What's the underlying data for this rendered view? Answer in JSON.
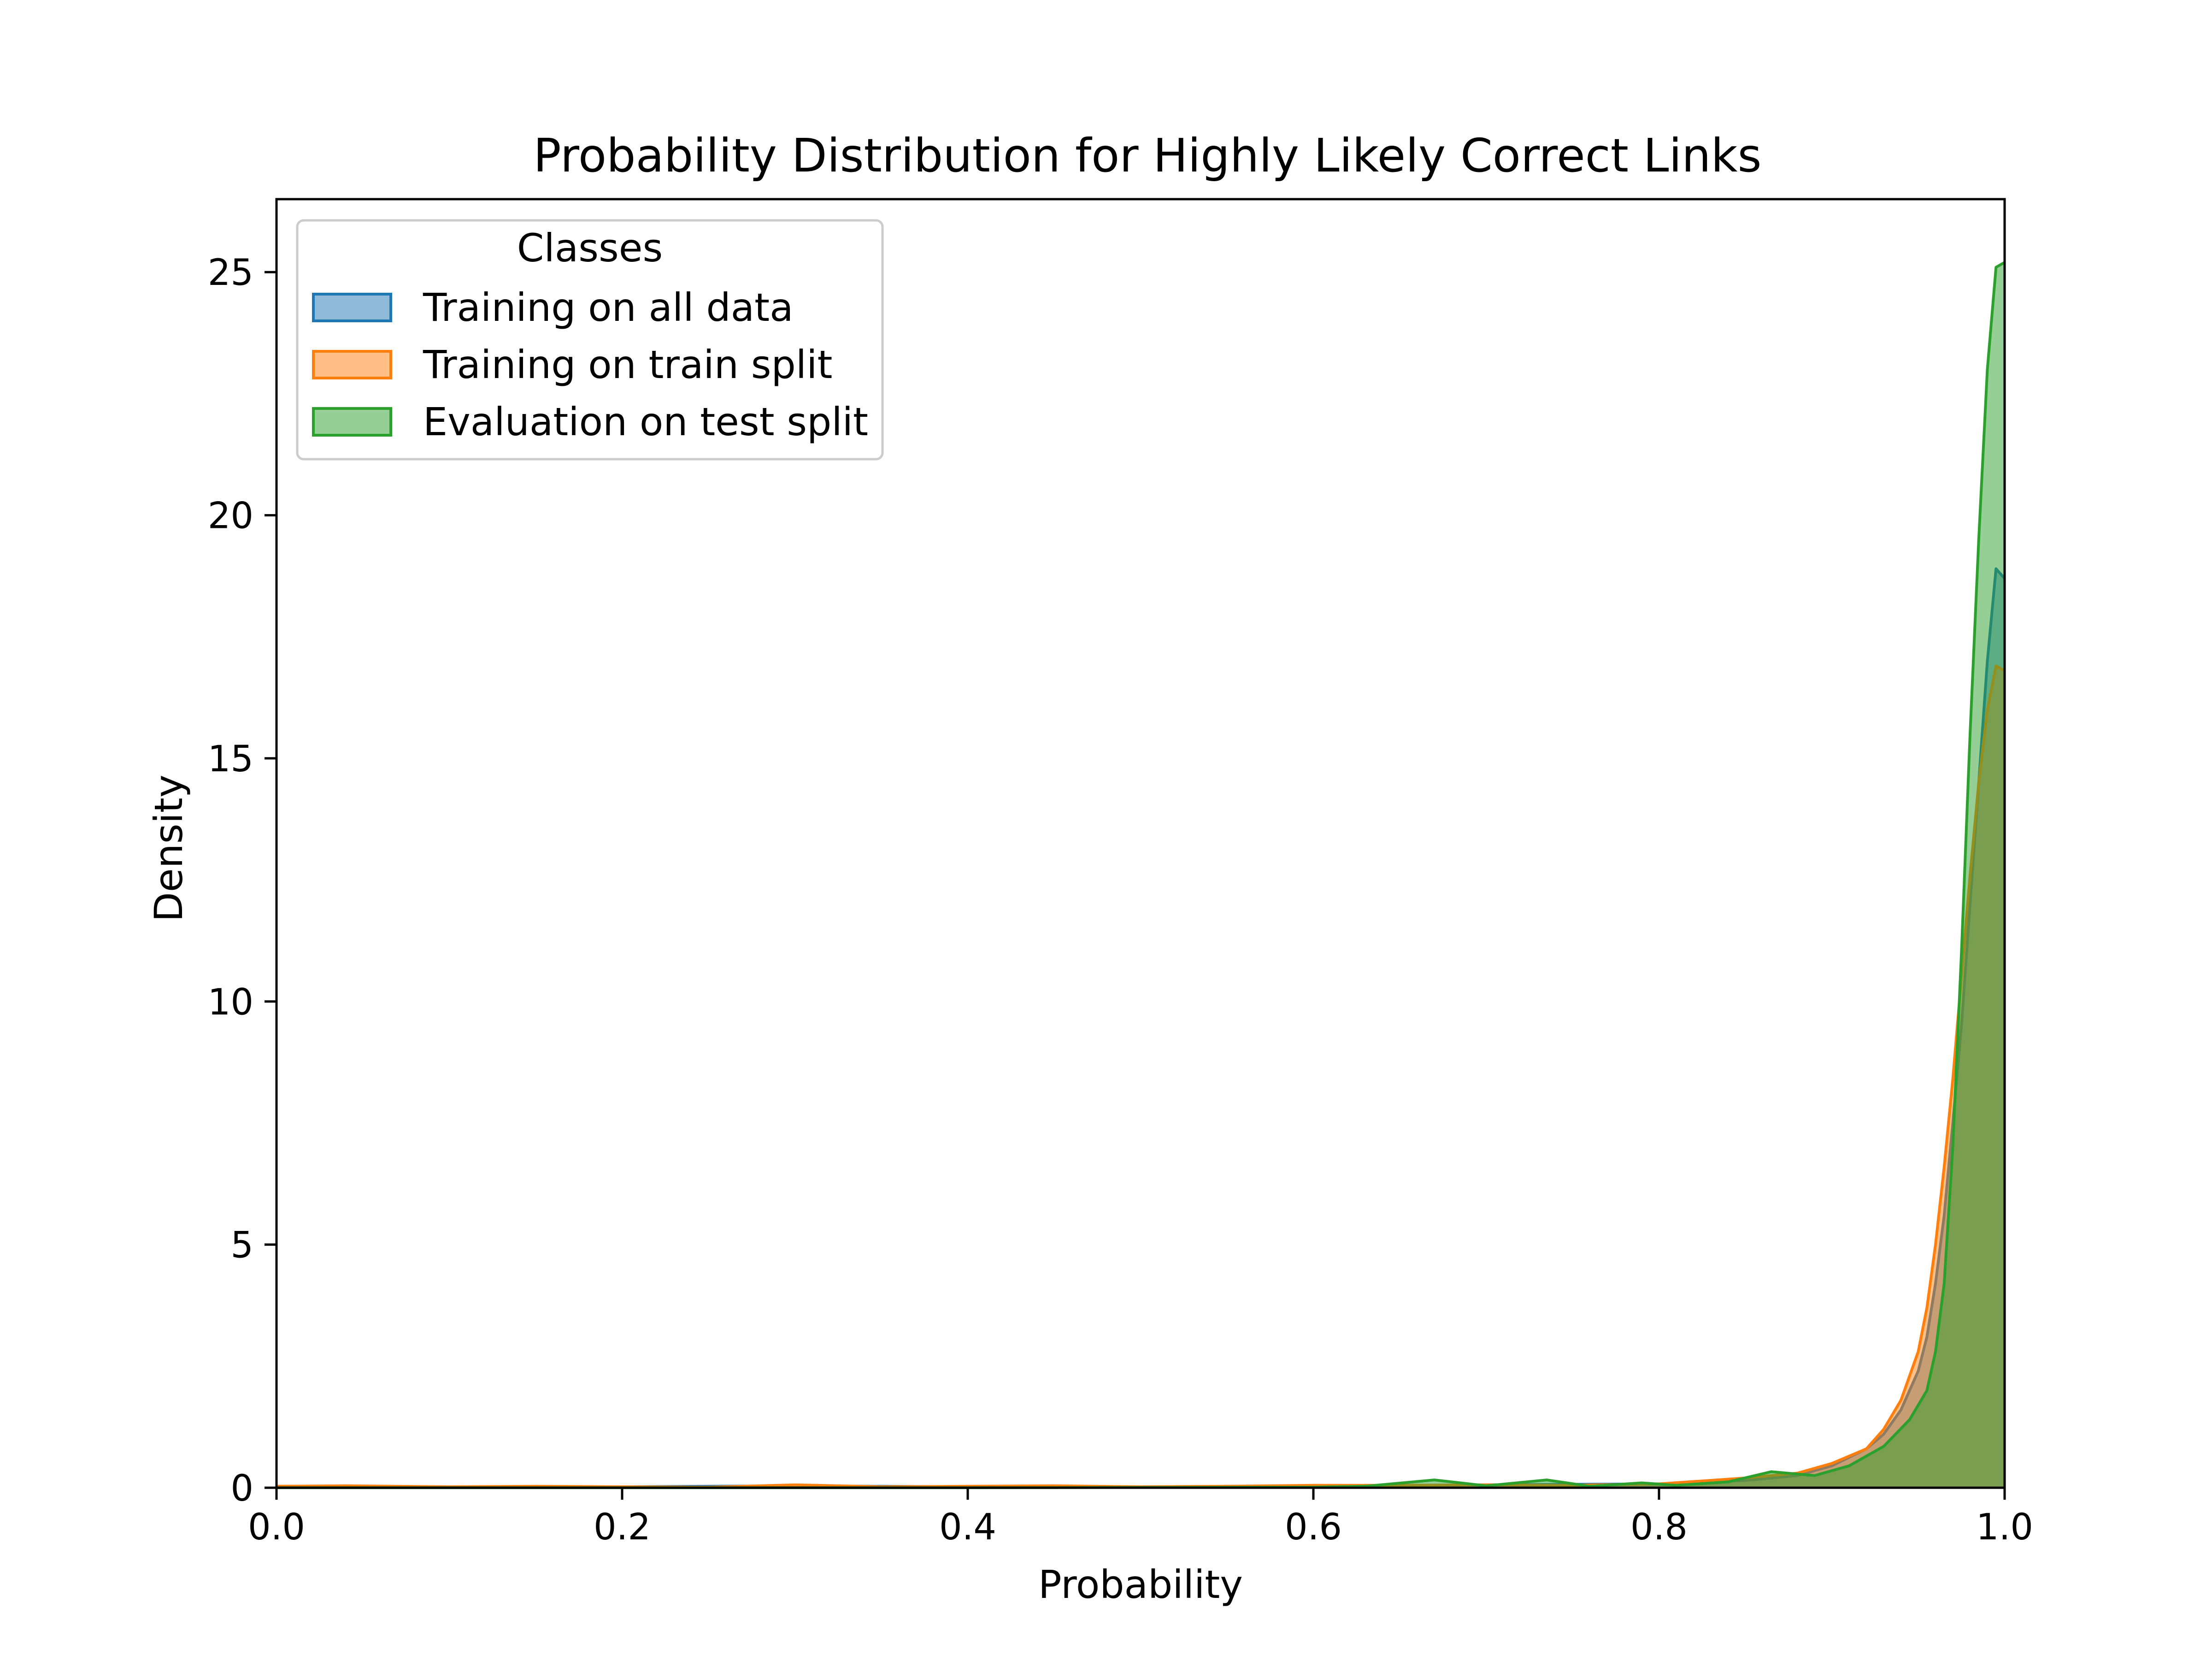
{
  "chart_data": {
    "type": "area",
    "title": "Probability Distribution for Highly Likely Correct Links",
    "xlabel": "Probability",
    "ylabel": "Density",
    "xlim": [
      0.0,
      1.0
    ],
    "ylim": [
      0,
      26.5
    ],
    "xticks": [
      0.0,
      0.2,
      0.4,
      0.6,
      0.8,
      1.0
    ],
    "xtick_labels": [
      "0.0",
      "0.2",
      "0.4",
      "0.6",
      "0.8",
      "1.0"
    ],
    "yticks": [
      0,
      5,
      10,
      15,
      20,
      25
    ],
    "ytick_labels": [
      "0",
      "5",
      "10",
      "15",
      "20",
      "25"
    ],
    "grid": false,
    "legend": {
      "title": "Classes",
      "placement": "upper-left"
    },
    "series": [
      {
        "name": "Training on all data",
        "color": "#1f77b4",
        "x": [
          0.0,
          0.05,
          0.1,
          0.2,
          0.3,
          0.4,
          0.5,
          0.6,
          0.7,
          0.8,
          0.85,
          0.88,
          0.9,
          0.92,
          0.93,
          0.94,
          0.95,
          0.955,
          0.96,
          0.965,
          0.97,
          0.975,
          0.98,
          0.985,
          0.99,
          0.995,
          1.0
        ],
        "y": [
          0.02,
          0.03,
          0.02,
          0.02,
          0.04,
          0.02,
          0.02,
          0.04,
          0.06,
          0.08,
          0.15,
          0.25,
          0.45,
          0.8,
          1.1,
          1.6,
          2.4,
          3.1,
          4.2,
          5.6,
          7.5,
          9.5,
          12.0,
          14.5,
          17.0,
          18.9,
          18.7
        ]
      },
      {
        "name": "Training on train split",
        "color": "#ff7f0e",
        "x": [
          0.0,
          0.04,
          0.1,
          0.15,
          0.2,
          0.25,
          0.3,
          0.35,
          0.4,
          0.45,
          0.5,
          0.55,
          0.6,
          0.65,
          0.7,
          0.75,
          0.8,
          0.85,
          0.88,
          0.9,
          0.92,
          0.93,
          0.94,
          0.95,
          0.955,
          0.96,
          0.965,
          0.97,
          0.975,
          0.98,
          0.985,
          0.99,
          0.995,
          1.0
        ],
        "y": [
          0.03,
          0.04,
          0.02,
          0.03,
          0.02,
          0.01,
          0.06,
          0.02,
          0.03,
          0.04,
          0.02,
          0.03,
          0.05,
          0.05,
          0.06,
          0.05,
          0.08,
          0.2,
          0.3,
          0.5,
          0.8,
          1.2,
          1.8,
          2.8,
          3.7,
          5.0,
          6.6,
          8.4,
          10.5,
          12.6,
          14.5,
          16.0,
          16.9,
          16.8
        ]
      },
      {
        "name": "Evaluation on test split",
        "color": "#2ca02c",
        "x": [
          0.0,
          0.2,
          0.4,
          0.6,
          0.63,
          0.67,
          0.7,
          0.735,
          0.76,
          0.79,
          0.81,
          0.84,
          0.865,
          0.89,
          0.91,
          0.93,
          0.945,
          0.955,
          0.96,
          0.965,
          0.97,
          0.975,
          0.98,
          0.985,
          0.99,
          0.995,
          1.0
        ],
        "y": [
          0.0,
          0.0,
          0.0,
          0.01,
          0.03,
          0.16,
          0.04,
          0.16,
          0.03,
          0.1,
          0.05,
          0.12,
          0.33,
          0.25,
          0.45,
          0.85,
          1.4,
          2.0,
          2.8,
          4.2,
          7.0,
          11.0,
          15.5,
          19.5,
          23.0,
          25.1,
          25.2
        ]
      }
    ]
  }
}
